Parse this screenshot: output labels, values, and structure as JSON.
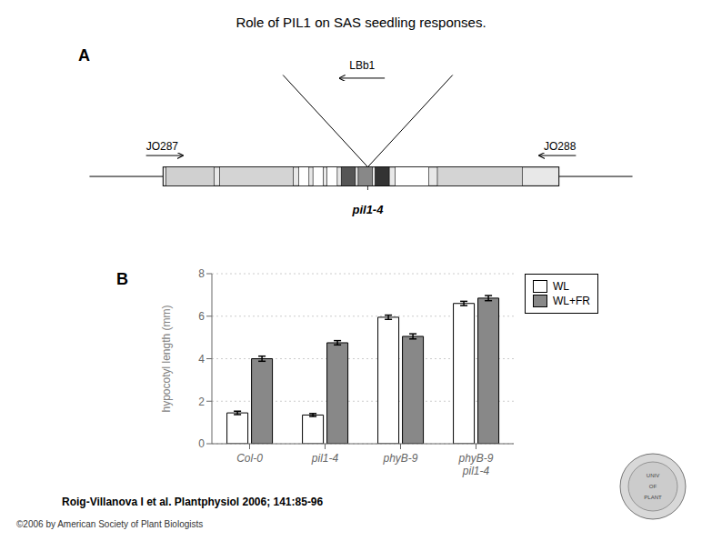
{
  "chart_data": {
    "type": "bar",
    "title": "Role of PIL1 on SAS seedling responses.",
    "annotations": [
      "A",
      "B",
      "LBb1",
      "JO287",
      "JO288",
      "pil1-4",
      "Roig-Villanova I et al. Plantphysiol 2006; 141:85-96",
      "©2006 by American Society of Plant Biologists",
      "UNIV",
      "OF",
      "PLANT"
    ],
    "categories": [
      "Col-0",
      "pil1-4",
      "phyB-9",
      "phyB-9\npil1-4"
    ],
    "series": [
      {
        "name": "WL",
        "color": "#ffffff",
        "values": [
          1.45,
          1.35,
          5.95,
          6.6
        ],
        "errors": [
          0.08,
          0.07,
          0.1,
          0.1
        ]
      },
      {
        "name": "WL+FR",
        "color": "#888888",
        "values": [
          4.0,
          4.75,
          5.05,
          6.85
        ],
        "errors": [
          0.12,
          0.1,
          0.12,
          0.12
        ]
      }
    ],
    "ylabel": "hypocotyl length (mm)",
    "ylim": [
      0,
      8
    ],
    "yticks": [
      0,
      2,
      4,
      6,
      8
    ],
    "grid": true,
    "legend": "upper right"
  }
}
